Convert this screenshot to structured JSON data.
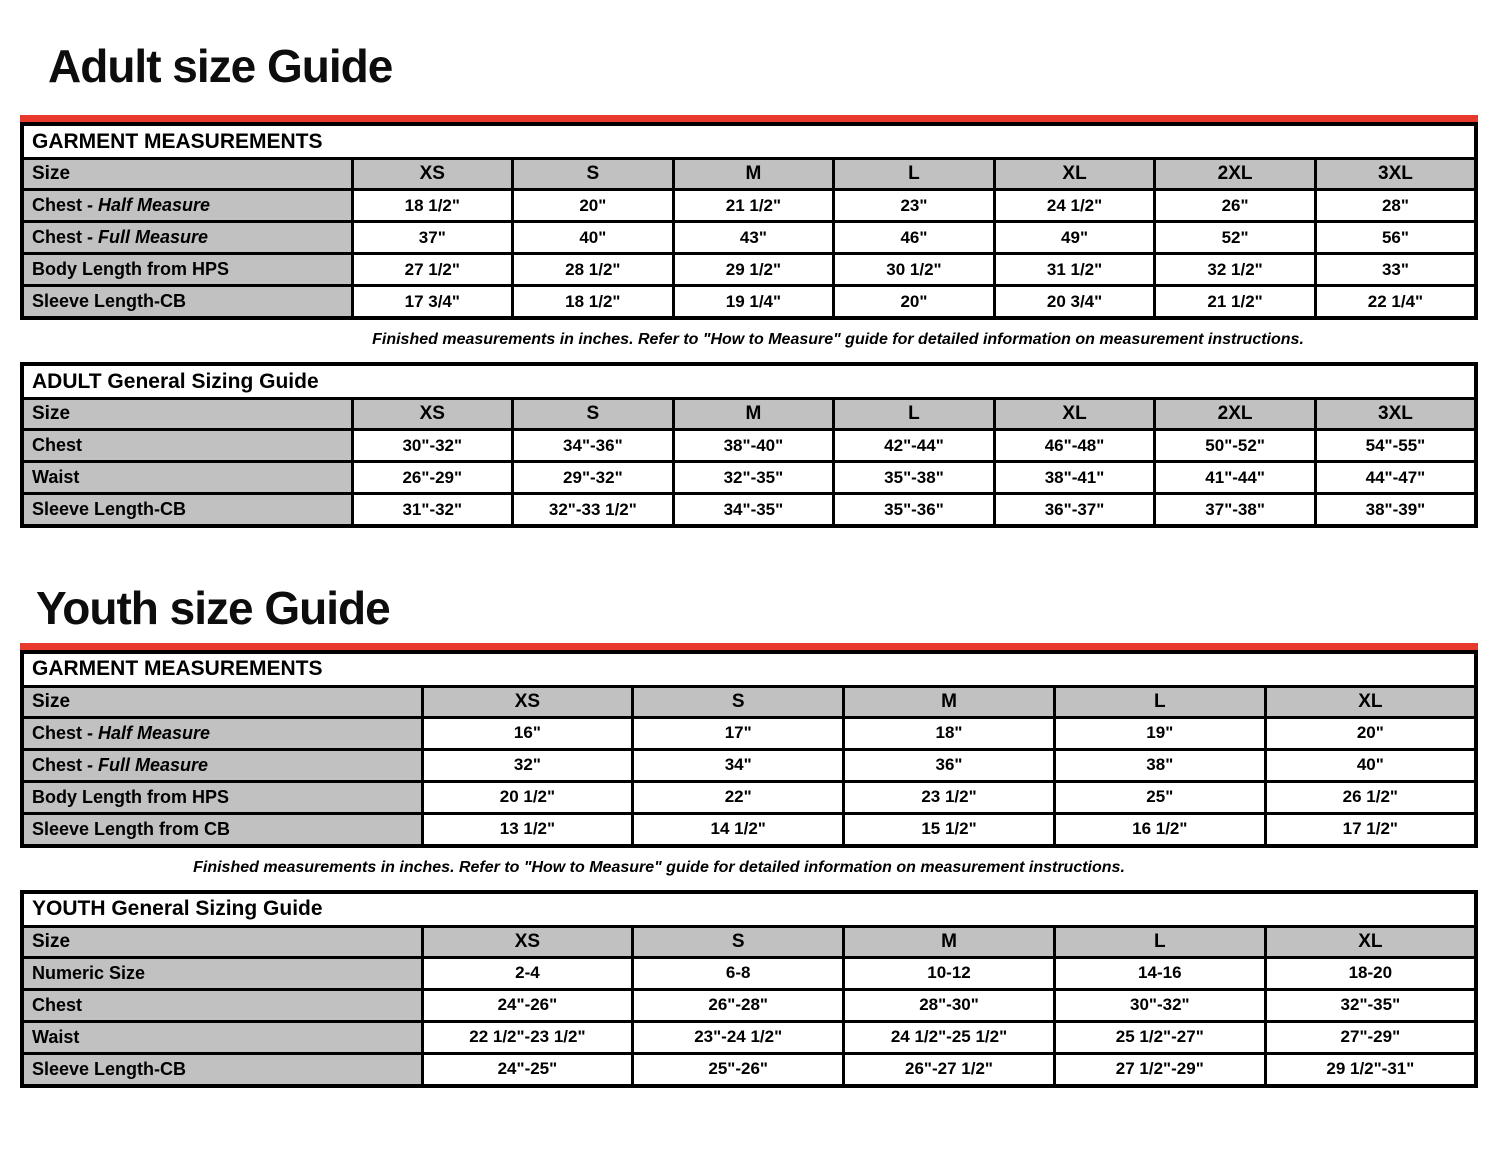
{
  "accent_color": "#e8392d",
  "header_gray": "#c1c1c1",
  "adult": {
    "heading": "Adult size Guide",
    "note": "Finished measurements in inches. Refer to \"How to Measure\" guide for detailed information on measurement instructions.",
    "garment": {
      "title": "GARMENT MEASUREMENTS",
      "size_label": "Size",
      "columns": [
        "XS",
        "S",
        "M",
        "L",
        "XL",
        "2XL",
        "3XL"
      ],
      "rows": [
        {
          "label": "Chest - ",
          "label_italic": "Half Measure",
          "values": [
            "18 1/2\"",
            "20\"",
            "21 1/2\"",
            "23\"",
            "24 1/2\"",
            "26\"",
            "28\""
          ]
        },
        {
          "label": "Chest - ",
          "label_italic": "Full Measure",
          "values": [
            "37\"",
            "40\"",
            "43\"",
            "46\"",
            "49\"",
            "52\"",
            "56\""
          ]
        },
        {
          "label": "Body Length from HPS",
          "values": [
            "27 1/2\"",
            "28 1/2\"",
            "29 1/2\"",
            "30 1/2\"",
            "31 1/2\"",
            "32 1/2\"",
            "33\""
          ]
        },
        {
          "label": "Sleeve Length-CB",
          "values": [
            "17 3/4\"",
            "18 1/2\"",
            "19 1/4\"",
            "20\"",
            "20 3/4\"",
            "21 1/2\"",
            "22 1/4\""
          ]
        }
      ]
    },
    "general": {
      "title": "ADULT General Sizing Guide",
      "size_label": "Size",
      "columns": [
        "XS",
        "S",
        "M",
        "L",
        "XL",
        "2XL",
        "3XL"
      ],
      "rows": [
        {
          "label": "Chest",
          "values": [
            "30\"-32\"",
            "34\"-36\"",
            "38\"-40\"",
            "42\"-44\"",
            "46\"-48\"",
            "50\"-52\"",
            "54\"-55\""
          ]
        },
        {
          "label": "Waist",
          "values": [
            "26\"-29\"",
            "29\"-32\"",
            "32\"-35\"",
            "35\"-38\"",
            "38\"-41\"",
            "41\"-44\"",
            "44\"-47\""
          ]
        },
        {
          "label": "Sleeve Length-CB",
          "values": [
            "31\"-32\"",
            "32\"-33 1/2\"",
            "34\"-35\"",
            "35\"-36\"",
            "36\"-37\"",
            "37\"-38\"",
            "38\"-39\""
          ]
        }
      ]
    }
  },
  "youth": {
    "heading": "Youth size Guide",
    "note": "Finished measurements in inches. Refer to \"How to Measure\" guide for detailed information on measurement instructions.",
    "garment": {
      "title": "GARMENT MEASUREMENTS",
      "size_label": "Size",
      "columns": [
        "XS",
        "S",
        "M",
        "L",
        "XL"
      ],
      "rows": [
        {
          "label": "Chest - ",
          "label_italic": "Half Measure",
          "values": [
            "16\"",
            "17\"",
            "18\"",
            "19\"",
            "20\""
          ]
        },
        {
          "label": "Chest - ",
          "label_italic": "Full Measure",
          "values": [
            "32\"",
            "34\"",
            "36\"",
            "38\"",
            "40\""
          ]
        },
        {
          "label": "Body Length from HPS",
          "values": [
            "20 1/2\"",
            "22\"",
            "23 1/2\"",
            "25\"",
            "26 1/2\""
          ]
        },
        {
          "label": "Sleeve Length from CB",
          "values": [
            "13 1/2\"",
            "14 1/2\"",
            "15 1/2\"",
            "16 1/2\"",
            "17 1/2\""
          ]
        }
      ]
    },
    "general": {
      "title": "YOUTH General Sizing Guide",
      "size_label": "Size",
      "columns": [
        "XS",
        "S",
        "M",
        "L",
        "XL"
      ],
      "rows": [
        {
          "label": "Numeric Size",
          "values": [
            "2-4",
            "6-8",
            "10-12",
            "14-16",
            "18-20"
          ]
        },
        {
          "label": "Chest",
          "values": [
            "24\"-26\"",
            "26\"-28\"",
            "28\"-30\"",
            "30\"-32\"",
            "32\"-35\""
          ]
        },
        {
          "label": "Waist",
          "values": [
            "22 1/2\"-23 1/2\"",
            "23\"-24 1/2\"",
            "24 1/2\"-25 1/2\"",
            "25 1/2\"-27\"",
            "27\"-29\""
          ]
        },
        {
          "label": "Sleeve Length-CB",
          "values": [
            "24\"-25\"",
            "25\"-26\"",
            "26\"-27 1/2\"",
            "27 1/2\"-29\"",
            "29 1/2\"-31\""
          ]
        }
      ]
    }
  }
}
